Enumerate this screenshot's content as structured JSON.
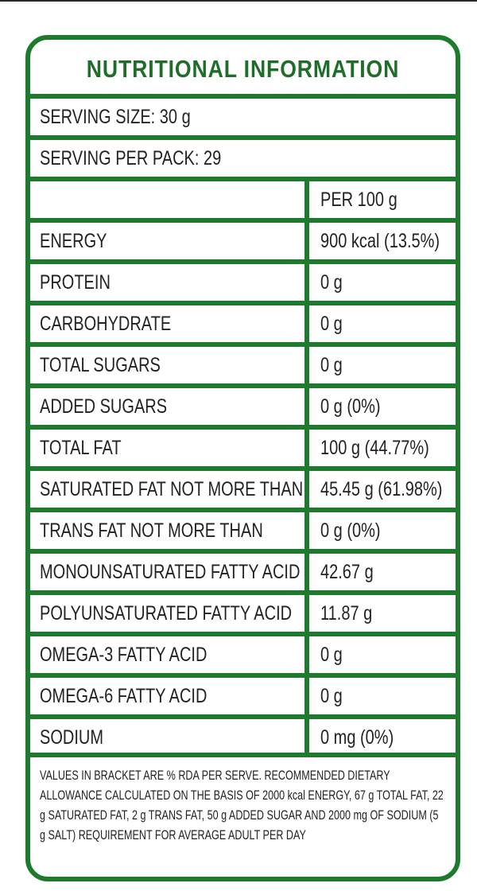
{
  "label": {
    "title": "NUTRITIONAL INFORMATION",
    "serving_size": "SERVING SIZE:  30 g",
    "serving_per_pack": "SERVING PER PACK: 29",
    "column_header": "PER 100 g",
    "rows": [
      {
        "name": "ENERGY",
        "value": "900 kcal (13.5%)"
      },
      {
        "name": "PROTEIN",
        "value": "0 g"
      },
      {
        "name": "CARBOHYDRATE",
        "value": "0 g"
      },
      {
        "name": "TOTAL SUGARS",
        "value": "0 g"
      },
      {
        "name": "ADDED SUGARS",
        "value": "0 g (0%)"
      },
      {
        "name": "TOTAL FAT",
        "value": "100 g (44.77%)"
      },
      {
        "name": "SATURATED FAT NOT MORE THAN",
        "value": "45.45 g (61.98%)"
      },
      {
        "name": "TRANS FAT NOT MORE THAN",
        "value": "0 g (0%)"
      },
      {
        "name": "MONOUNSATURATED FATTY ACID",
        "value": "42.67 g"
      },
      {
        "name": "POLYUNSATURATED FATTY ACID",
        "value": "11.87 g"
      },
      {
        "name": "OMEGA-3 FATTY ACID",
        "value": "0 g"
      },
      {
        "name": "OMEGA-6 FATTY ACID",
        "value": "0 g"
      },
      {
        "name": "SODIUM",
        "value": "0 mg (0%)"
      }
    ],
    "footnote": "VALUES IN BRACKET ARE % RDA PER SERVE. RECOMMENDED DIETARY ALLOWANCE CALCULATED ON THE BASIS OF 2000 kcal ENERGY, 67 g TOTAL FAT, 22 g SATURATED FAT, 2 g TRANS FAT, 50 g ADDED SUGAR AND 2000 mg OF SODIUM (5 g SALT) REQUIREMENT FOR AVERAGE ADULT PER DAY"
  },
  "colors": {
    "border": "#1e7a2c",
    "title": "#1e6e2a",
    "text": "#222222"
  }
}
